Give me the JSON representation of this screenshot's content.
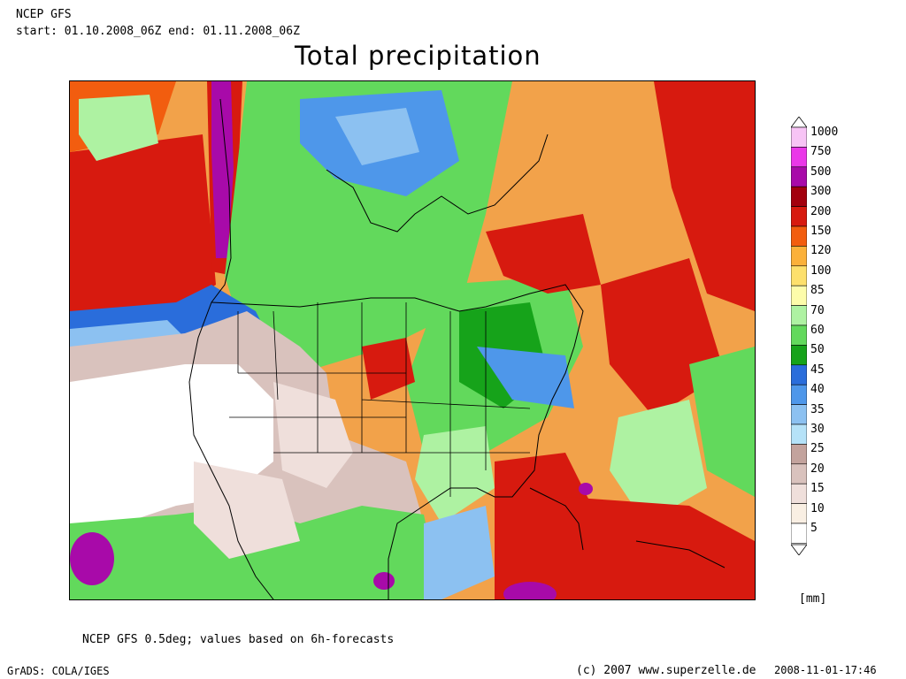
{
  "header": {
    "model": "NCEP GFS",
    "period": "start: 01.10.2008_06Z end: 01.11.2008_06Z",
    "title": "Total precipitation"
  },
  "legend": {
    "unit": "[mm]",
    "levels": [
      {
        "label": "1000",
        "color": "#f7c4f5"
      },
      {
        "label": "750",
        "color": "#ea38e8"
      },
      {
        "label": "500",
        "color": "#a80aa9"
      },
      {
        "label": "300",
        "color": "#a3000d"
      },
      {
        "label": "200",
        "color": "#d71a0f"
      },
      {
        "label": "150",
        "color": "#f25d0f"
      },
      {
        "label": "120",
        "color": "#fbb13a"
      },
      {
        "label": "100",
        "color": "#fde06c"
      },
      {
        "label": "85",
        "color": "#fdfcaa"
      },
      {
        "label": "70",
        "color": "#aef2a2"
      },
      {
        "label": "60",
        "color": "#62d95c"
      },
      {
        "label": "50",
        "color": "#16a31a"
      },
      {
        "label": "45",
        "color": "#2a6ddb"
      },
      {
        "label": "40",
        "color": "#4e97ea"
      },
      {
        "label": "35",
        "color": "#8cc1f1"
      },
      {
        "label": "30",
        "color": "#b5e2f8"
      },
      {
        "label": "25",
        "color": "#c3a39d"
      },
      {
        "label": "20",
        "color": "#d9c2bd"
      },
      {
        "label": "15",
        "color": "#efdfdb"
      },
      {
        "label": "10",
        "color": "#f9efe3"
      },
      {
        "label": "5",
        "color": "#ffffff"
      }
    ]
  },
  "footer": {
    "note": "NCEP GFS 0.5deg; values based on 6h-forecasts",
    "credit": "GrADS: COLA/IGES",
    "site": "(c) 2007 www.superzelle.de",
    "timestamp": "2008-11-01-17:46"
  }
}
